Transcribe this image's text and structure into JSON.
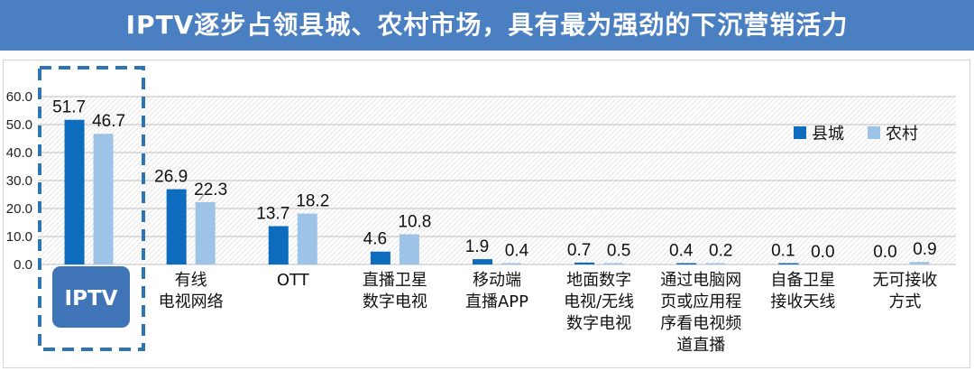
{
  "banner": {
    "title": "IPTV逐步占领县城、农村市场，具有最为强劲的下沉营销活力"
  },
  "colors": {
    "banner": "#4a7fc1",
    "series_county": "#0d6cbd",
    "series_rural": "#9dc3e6",
    "highlight": "#2e75b6",
    "iptv_box": "#3f74b6"
  },
  "chart_data": {
    "type": "bar",
    "categories": [
      "IPTV",
      "有线\n电视网络",
      "OTT",
      "直播卫星\n数字电视",
      "移动端\n直播APP",
      "地面数字\n电视/无线\n数字电视",
      "通过电脑网\n页或应用程\n序看电视频\n道直播",
      "自备卫星\n接收天线",
      "无可接收\n方式"
    ],
    "series": [
      {
        "name": "县城",
        "values": [
          51.7,
          26.9,
          13.7,
          4.6,
          1.9,
          0.7,
          0.4,
          0.1,
          0.0
        ],
        "labels": [
          "51.7",
          "26.9",
          "13.7",
          "4.6",
          "1.9",
          "0.7",
          "0.4",
          "0.1",
          "0.0"
        ]
      },
      {
        "name": "农村",
        "values": [
          46.7,
          22.3,
          18.2,
          10.8,
          0.4,
          0.5,
          0.2,
          0.0,
          0.9
        ],
        "labels": [
          "46.7",
          "22.3",
          "18.2",
          "10.8",
          "0.4",
          "0.5",
          "0.2",
          "0.0",
          "0.9"
        ]
      }
    ],
    "yticks": [
      "0.0",
      "10.0",
      "20.0",
      "30.0",
      "40.0",
      "50.0",
      "60.0"
    ],
    "ylim": [
      0,
      60
    ],
    "grid": true,
    "legend": "top-right",
    "highlight_category": "IPTV"
  }
}
